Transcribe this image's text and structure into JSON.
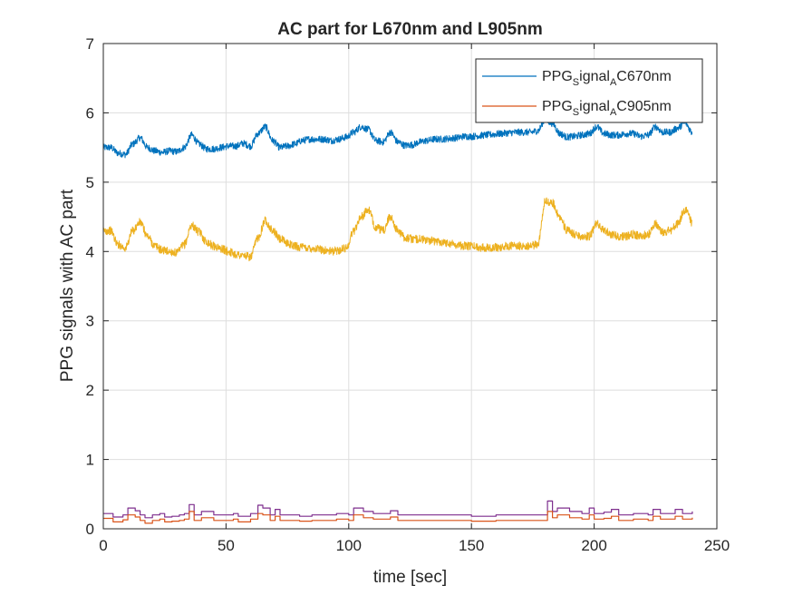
{
  "chart_data": {
    "type": "line",
    "title": "AC part for L670nm and L905nm",
    "xlabel": "time [sec]",
    "ylabel": "PPG signals with AC part",
    "xlim": [
      0,
      250
    ],
    "ylim": [
      0,
      7
    ],
    "xticks": [
      "0",
      "50",
      "100",
      "150",
      "200",
      "250"
    ],
    "yticks": [
      "0",
      "1",
      "2",
      "3",
      "4",
      "5",
      "6",
      "7"
    ],
    "grid": true,
    "legend_position": "top-right",
    "legend": [
      {
        "prefix": "PPG",
        "sub1": "S",
        "mid": "ignal",
        "sub2": "A",
        "suffix": "C670nm",
        "color": "#0072BD"
      },
      {
        "prefix": "PPG",
        "sub1": "S",
        "mid": "ignal",
        "sub2": "A",
        "suffix": "C905nm",
        "color": "#D95319"
      }
    ],
    "series": [
      {
        "color": "#0072BD",
        "noise": 0.05,
        "x": [
          0,
          3,
          6,
          9,
          12,
          15,
          18,
          21,
          24,
          27,
          30,
          33,
          36,
          39,
          42,
          45,
          48,
          51,
          54,
          57,
          60,
          63,
          66,
          69,
          72,
          75,
          78,
          81,
          84,
          87,
          90,
          93,
          96,
          99,
          102,
          105,
          108,
          111,
          114,
          117,
          120,
          123,
          126,
          129,
          132,
          135,
          138,
          141,
          144,
          147,
          150,
          153,
          156,
          159,
          162,
          165,
          168,
          171,
          174,
          177,
          180,
          183,
          186,
          189,
          192,
          195,
          198,
          201,
          204,
          207,
          210,
          213,
          216,
          219,
          222,
          225,
          228,
          231,
          234,
          237,
          240
        ],
        "y": [
          5.5,
          5.5,
          5.42,
          5.4,
          5.55,
          5.64,
          5.5,
          5.45,
          5.43,
          5.45,
          5.44,
          5.5,
          5.68,
          5.55,
          5.48,
          5.48,
          5.5,
          5.52,
          5.52,
          5.56,
          5.52,
          5.7,
          5.8,
          5.6,
          5.5,
          5.52,
          5.55,
          5.6,
          5.62,
          5.62,
          5.62,
          5.6,
          5.62,
          5.65,
          5.72,
          5.8,
          5.76,
          5.6,
          5.58,
          5.72,
          5.58,
          5.53,
          5.54,
          5.58,
          5.6,
          5.62,
          5.62,
          5.63,
          5.64,
          5.66,
          5.66,
          5.67,
          5.68,
          5.69,
          5.7,
          5.71,
          5.72,
          5.72,
          5.72,
          5.74,
          5.9,
          5.85,
          5.7,
          5.65,
          5.66,
          5.68,
          5.7,
          5.8,
          5.7,
          5.68,
          5.68,
          5.7,
          5.7,
          5.66,
          5.68,
          5.8,
          5.72,
          5.72,
          5.78,
          5.86,
          5.72
        ]
      },
      {
        "color": "#EDB120",
        "noise": 0.06,
        "x": [
          0,
          3,
          6,
          9,
          12,
          15,
          18,
          21,
          24,
          27,
          30,
          33,
          36,
          39,
          42,
          45,
          48,
          51,
          54,
          57,
          60,
          63,
          66,
          69,
          72,
          75,
          78,
          81,
          84,
          87,
          90,
          93,
          96,
          99,
          102,
          105,
          108,
          111,
          114,
          117,
          120,
          123,
          126,
          129,
          132,
          135,
          138,
          141,
          144,
          147,
          150,
          153,
          156,
          159,
          162,
          165,
          168,
          171,
          174,
          177,
          180,
          183,
          186,
          189,
          192,
          195,
          198,
          201,
          204,
          207,
          210,
          213,
          216,
          219,
          222,
          225,
          228,
          231,
          234,
          237,
          240
        ],
        "y": [
          4.3,
          4.3,
          4.1,
          4.05,
          4.3,
          4.42,
          4.22,
          4.08,
          4.02,
          4.0,
          3.98,
          4.1,
          4.38,
          4.28,
          4.14,
          4.08,
          4.04,
          4.0,
          3.96,
          3.94,
          3.92,
          4.2,
          4.45,
          4.3,
          4.18,
          4.12,
          4.08,
          4.06,
          4.05,
          4.04,
          4.02,
          4.0,
          4.02,
          4.05,
          4.3,
          4.5,
          4.6,
          4.35,
          4.3,
          4.5,
          4.3,
          4.2,
          4.18,
          4.18,
          4.16,
          4.15,
          4.14,
          4.12,
          4.1,
          4.08,
          4.08,
          4.06,
          4.06,
          4.06,
          4.06,
          4.08,
          4.08,
          4.08,
          4.08,
          4.1,
          4.72,
          4.7,
          4.5,
          4.3,
          4.25,
          4.22,
          4.22,
          4.4,
          4.3,
          4.25,
          4.22,
          4.22,
          4.25,
          4.22,
          4.25,
          4.4,
          4.28,
          4.3,
          4.4,
          4.6,
          4.42
        ]
      },
      {
        "color": "#7E2F8E",
        "step": true,
        "x": [
          0,
          4,
          8,
          10,
          13,
          15,
          17,
          20,
          23,
          25,
          28,
          31,
          33,
          35,
          37,
          40,
          45,
          50,
          53,
          55,
          57,
          60,
          61,
          63,
          65,
          68,
          70,
          72,
          76,
          80,
          85,
          90,
          95,
          100,
          102,
          106,
          110,
          115,
          117,
          120,
          125,
          130,
          140,
          150,
          160,
          170,
          176,
          178,
          181,
          183,
          185,
          190,
          195,
          198,
          200,
          204,
          207,
          210,
          216,
          222,
          224,
          227,
          230,
          233,
          236,
          240
        ],
        "y": [
          0.22,
          0.17,
          0.2,
          0.3,
          0.26,
          0.2,
          0.16,
          0.2,
          0.22,
          0.17,
          0.18,
          0.2,
          0.22,
          0.35,
          0.2,
          0.25,
          0.2,
          0.2,
          0.22,
          0.18,
          0.18,
          0.22,
          0.22,
          0.34,
          0.3,
          0.2,
          0.28,
          0.2,
          0.2,
          0.18,
          0.2,
          0.2,
          0.22,
          0.2,
          0.3,
          0.25,
          0.22,
          0.22,
          0.26,
          0.2,
          0.2,
          0.2,
          0.2,
          0.18,
          0.2,
          0.2,
          0.2,
          0.2,
          0.4,
          0.25,
          0.3,
          0.25,
          0.22,
          0.3,
          0.22,
          0.24,
          0.28,
          0.2,
          0.22,
          0.2,
          0.28,
          0.22,
          0.22,
          0.28,
          0.22,
          0.25
        ]
      },
      {
        "color": "#D95319",
        "step": true,
        "x": [
          0,
          4,
          8,
          10,
          13,
          15,
          17,
          20,
          23,
          25,
          28,
          31,
          33,
          35,
          37,
          40,
          45,
          50,
          53,
          55,
          57,
          60,
          61,
          63,
          65,
          68,
          70,
          72,
          76,
          80,
          85,
          90,
          95,
          100,
          102,
          106,
          110,
          115,
          117,
          120,
          125,
          130,
          140,
          150,
          160,
          170,
          176,
          178,
          181,
          183,
          185,
          190,
          195,
          198,
          200,
          204,
          207,
          210,
          216,
          222,
          224,
          227,
          230,
          233,
          236,
          240
        ],
        "y": [
          0.15,
          0.1,
          0.13,
          0.2,
          0.17,
          0.12,
          0.08,
          0.12,
          0.14,
          0.1,
          0.11,
          0.12,
          0.14,
          0.25,
          0.12,
          0.16,
          0.12,
          0.12,
          0.14,
          0.1,
          0.1,
          0.14,
          0.14,
          0.22,
          0.2,
          0.12,
          0.18,
          0.12,
          0.12,
          0.11,
          0.12,
          0.12,
          0.14,
          0.12,
          0.2,
          0.16,
          0.14,
          0.14,
          0.17,
          0.12,
          0.12,
          0.12,
          0.12,
          0.11,
          0.12,
          0.12,
          0.12,
          0.12,
          0.25,
          0.16,
          0.2,
          0.16,
          0.14,
          0.2,
          0.14,
          0.15,
          0.18,
          0.12,
          0.14,
          0.12,
          0.18,
          0.14,
          0.14,
          0.18,
          0.14,
          0.16
        ]
      }
    ]
  }
}
